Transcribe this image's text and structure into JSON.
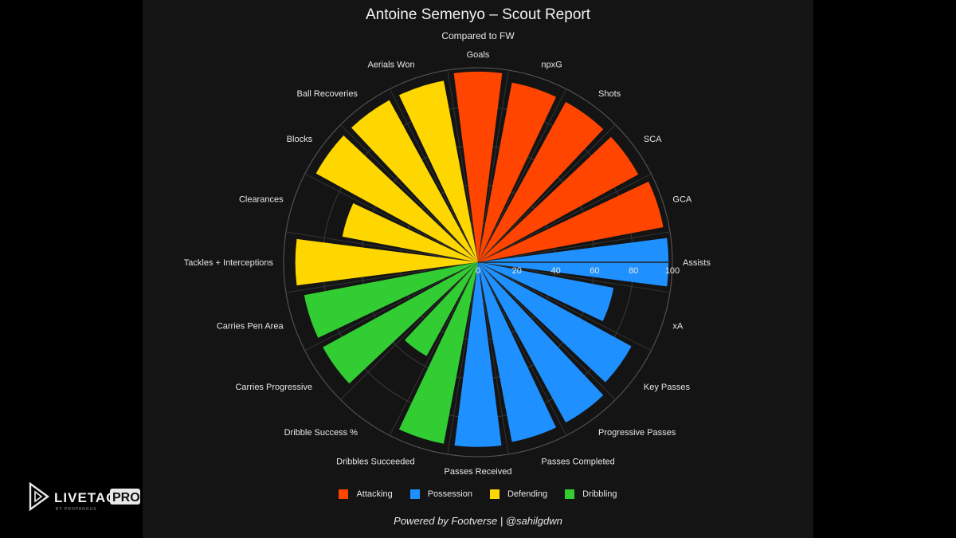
{
  "title": "Antoine Semenyo – Scout Report",
  "subtitle": "Compared to FW",
  "footer": "Powered by Footverse | @sahilgdwn",
  "watermark": {
    "brand": "LIVETAG",
    "suffix": "PRO",
    "tagline": "BY PROPANGUS"
  },
  "chart_data": {
    "type": "polar-bar",
    "title": "Antoine Semenyo – Scout Report",
    "subtitle": "Compared to FW",
    "radial_ticks": [
      0,
      20,
      40,
      60,
      80,
      100
    ],
    "rlim": [
      0,
      100
    ],
    "grid": true,
    "legend_position": "bottom",
    "groups": [
      {
        "name": "Attacking",
        "color": "#FF4500"
      },
      {
        "name": "Possession",
        "color": "#1E90FF"
      },
      {
        "name": "Defending",
        "color": "#FFD700"
      },
      {
        "name": "Dribbling",
        "color": "#32CD32"
      }
    ],
    "categories": [
      "Goals",
      "npxG",
      "Shots",
      "SCA",
      "GCA",
      "Assists",
      "xA",
      "Key Passes",
      "Progressive Passes",
      "Passes Completed",
      "Passes Received",
      "Dribbles Succeeded",
      "Dribble Success %",
      "Carries Progressive",
      "Carries Pen Area",
      "Tackles + Interceptions",
      "Clearances",
      "Blocks",
      "Ball Recoveries",
      "Aerials Won"
    ],
    "values": [
      98,
      94,
      94,
      94,
      97,
      98,
      71,
      90,
      94,
      94,
      95,
      95,
      55,
      91,
      91,
      94,
      71,
      95,
      95,
      95
    ],
    "groups_by_category": [
      "Attacking",
      "Attacking",
      "Attacking",
      "Attacking",
      "Attacking",
      "Possession",
      "Possession",
      "Possession",
      "Possession",
      "Possession",
      "Possession",
      "Dribbling",
      "Dribbling",
      "Dribbling",
      "Dribbling",
      "Defending",
      "Defending",
      "Defending",
      "Defending",
      "Defending"
    ]
  }
}
